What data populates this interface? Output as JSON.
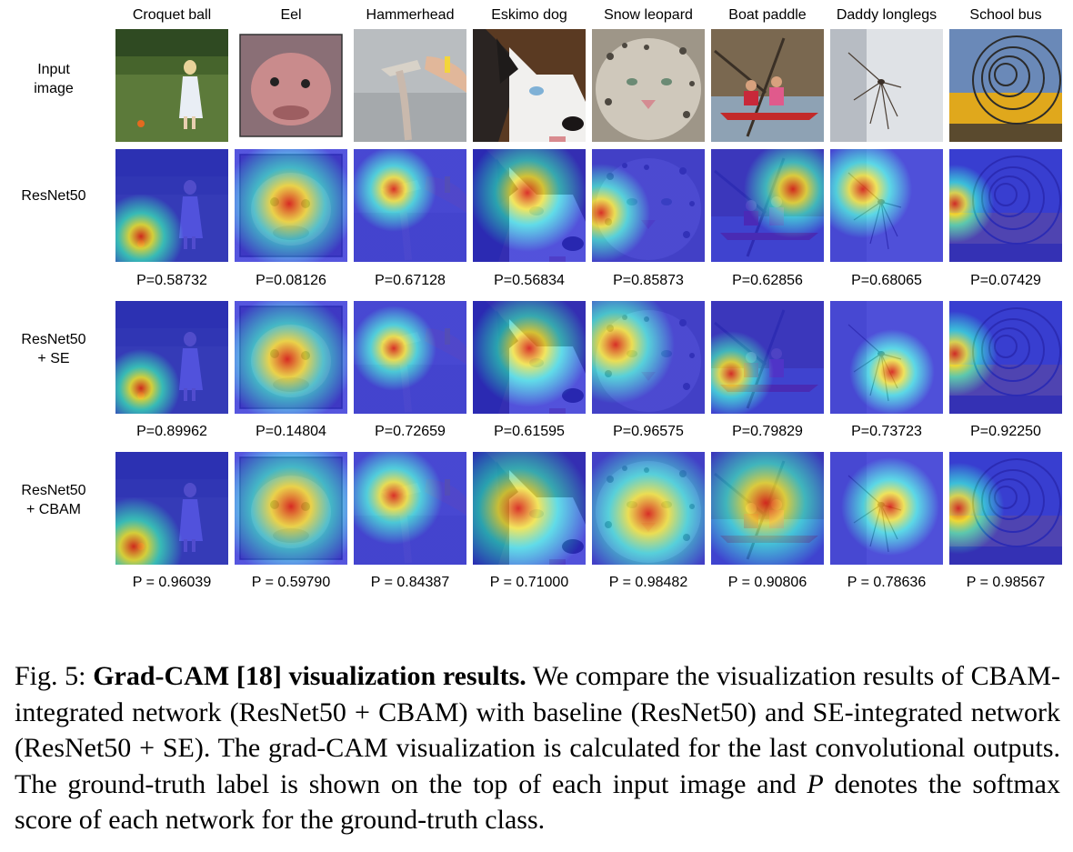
{
  "figure": {
    "classes": [
      {
        "label": "Croquet ball",
        "image": "input-croquet-ball",
        "heat": "heat-croquet"
      },
      {
        "label": "Eel",
        "image": "input-eel",
        "heat": "heat-eel"
      },
      {
        "label": "Hammerhead",
        "image": "input-hammerhead",
        "heat": "heat-hammerhead"
      },
      {
        "label": "Eskimo dog",
        "image": "input-eskimo-dog",
        "heat": "heat-eskimo"
      },
      {
        "label": "Snow leopard",
        "image": "input-snow-leopard",
        "heat": "heat-leopard"
      },
      {
        "label": "Boat paddle",
        "image": "input-boat-paddle",
        "heat": "heat-paddle"
      },
      {
        "label": "Daddy longlegs",
        "image": "input-daddy-longlegs",
        "heat": "heat-spider"
      },
      {
        "label": "School bus",
        "image": "input-school-bus",
        "heat": "heat-bus"
      }
    ],
    "rows": [
      {
        "label_lines": [
          "Input",
          "image"
        ],
        "kind": "input"
      },
      {
        "label_lines": [
          "ResNet50"
        ],
        "kind": "gradcam",
        "scores": [
          "P=0.58732",
          "P=0.08126",
          "P=0.67128",
          "P=0.56834",
          "P=0.85873",
          "P=0.62856",
          "P=0.68065",
          "P=0.07429"
        ]
      },
      {
        "label_lines": [
          "ResNet50",
          "+ SE"
        ],
        "kind": "gradcam",
        "scores": [
          "P=0.89962",
          "P=0.14804",
          "P=0.72659",
          "P=0.61595",
          "P=0.96575",
          "P=0.79829",
          "P=0.73723",
          "P=0.92250"
        ]
      },
      {
        "label_lines": [
          "ResNet50",
          "+ CBAM"
        ],
        "kind": "gradcam",
        "scores": [
          "P = 0.96039",
          "P = 0.59790",
          "P = 0.84387",
          "P = 0.71000",
          "P = 0.98482",
          "P = 0.90806",
          "P = 0.78636",
          "P = 0.98567"
        ]
      }
    ],
    "caption": {
      "prefix": "Fig. 5: ",
      "bold": "Grad-CAM [18] visualization results.",
      "text1": " We compare the visualization results of CBAM-integrated network (ResNet50 + CBAM) with baseline (ResNet50) and SE-integrated network (ResNet50 + SE). The grad-CAM visualization is calculated for the last convolutional outputs. The ground-truth label is shown on the top of each input image and ",
      "symbol": "P",
      "text2": " denotes the softmax score of each network for the ground-truth class."
    }
  },
  "colors": {
    "heat_low": "#2b2bd6",
    "heat_mid": "#29d3e6",
    "heat_yellow": "#f2e33a",
    "heat_high": "#d8221a"
  }
}
